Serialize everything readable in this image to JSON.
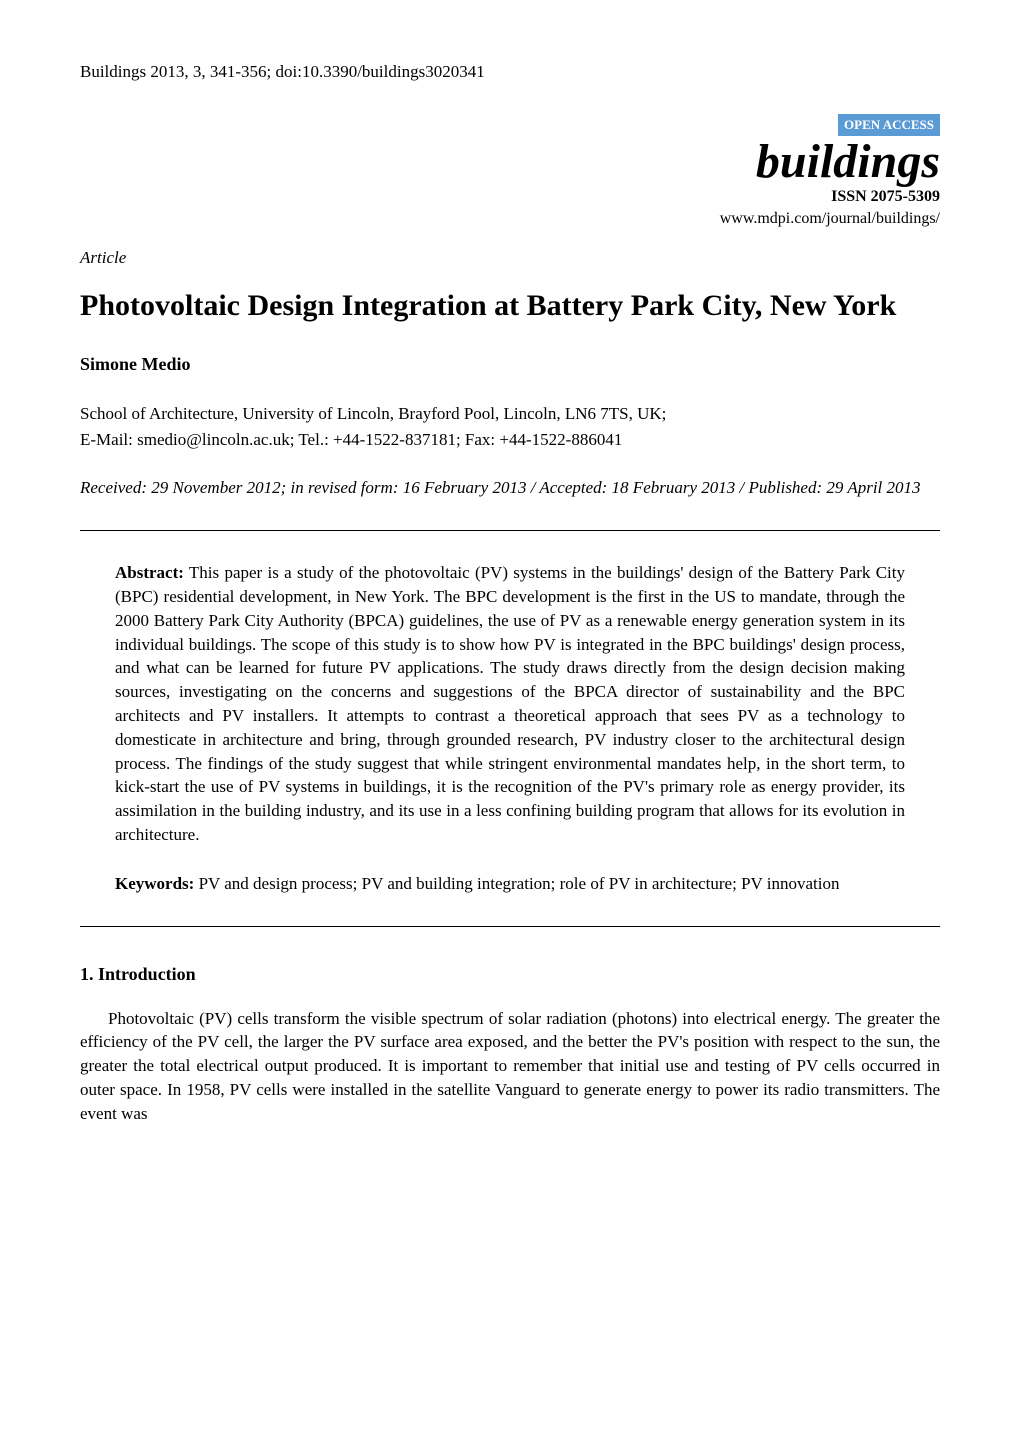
{
  "header": {
    "citation": "Buildings 2013, 3, 341-356; doi:10.3390/buildings3020341",
    "journal_prefix": "Buildings",
    "open_access": "OPEN ACCESS",
    "journal_name": "buildings",
    "issn": "ISSN 2075-5309",
    "url": "www.mdpi.com/journal/buildings/"
  },
  "article": {
    "type": "Article",
    "title": "Photovoltaic Design Integration at Battery Park City, New York",
    "author": "Simone Medio",
    "affiliation": "School of Architecture, University of Lincoln, Brayford Pool, Lincoln, LN6 7TS, UK;",
    "contact": "E-Mail: smedio@lincoln.ac.uk; Tel.: +44-1522-837181; Fax: +44-1522-886041",
    "dates": "Received: 29 November 2012; in revised form: 16 February 2013 / Accepted: 18 February 2013 / Published: 29 April 2013"
  },
  "abstract": {
    "label": "Abstract:",
    "text": " This paper is a study of the photovoltaic (PV) systems in the buildings' design of the Battery Park City (BPC) residential development, in New York. The BPC development is the first in the US to mandate, through the 2000 Battery Park City Authority (BPCA) guidelines, the use of PV as a renewable energy generation system in its individual buildings. The scope of this study is to show how PV is integrated in the BPC buildings' design process, and what can be learned for future PV applications. The study draws directly from the design decision making sources, investigating on the concerns and suggestions of the BPCA director of sustainability and the BPC architects and PV installers. It attempts to contrast a theoretical approach that sees PV as a technology to domesticate in architecture and bring, through grounded research, PV industry closer to the architectural design process. The findings of the study suggest that while stringent environmental mandates help, in the short term, to kick-start the use of PV systems in buildings, it is the recognition of the PV's primary role as energy provider, its assimilation in the building industry, and its use in a less confining building program that allows for its evolution in architecture."
  },
  "keywords": {
    "label": "Keywords:",
    "text": " PV and design process; PV and building integration; role of PV in architecture; PV innovation"
  },
  "section1": {
    "heading": "1. Introduction",
    "body": "Photovoltaic (PV) cells transform the visible spectrum of solar radiation (photons) into electrical energy. The greater the efficiency of the PV cell, the larger the PV surface area exposed, and the better the PV's position with respect to the sun, the greater the total electrical output produced. It is important to remember that initial use and testing of PV cells occurred in outer space. In 1958, PV cells were installed in the satellite Vanguard to generate energy to power its radio transmitters. The event was"
  },
  "colors": {
    "open_access_bg": "#5b9bd5",
    "open_access_fg": "#ffffff",
    "text": "#000000",
    "background": "#ffffff"
  }
}
